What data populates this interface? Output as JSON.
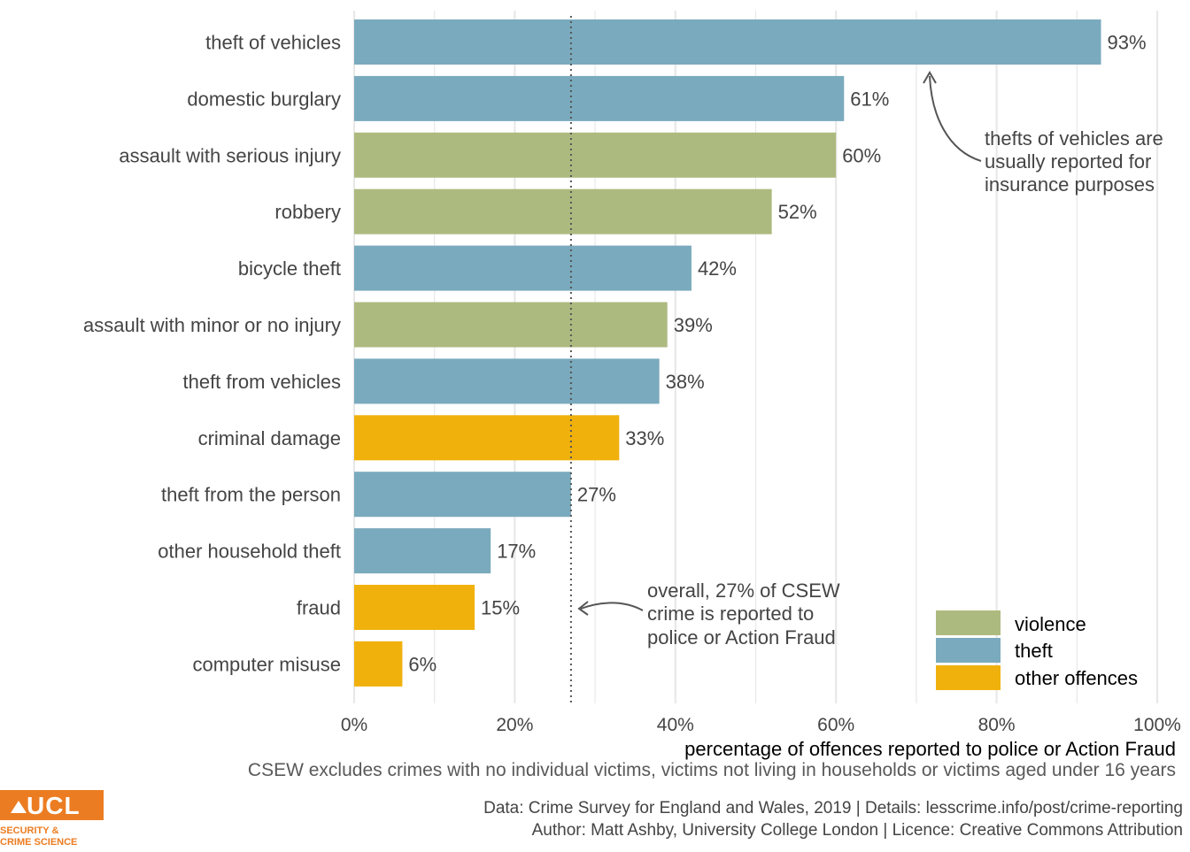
{
  "chart_data": {
    "type": "bar",
    "orientation": "horizontal",
    "categories": [
      "theft of vehicles",
      "domestic burglary",
      "assault with serious injury",
      "robbery",
      "bicycle theft",
      "assault with minor or no injury",
      "theft from vehicles",
      "criminal damage",
      "theft from the person",
      "other household theft",
      "fraud",
      "computer misuse"
    ],
    "values": [
      93,
      61,
      60,
      52,
      42,
      39,
      38,
      33,
      27,
      17,
      15,
      6
    ],
    "value_labels": [
      "93%",
      "61%",
      "60%",
      "52%",
      "42%",
      "39%",
      "38%",
      "33%",
      "27%",
      "17%",
      "15%",
      "6%"
    ],
    "groups": [
      "theft",
      "theft",
      "violence",
      "violence",
      "theft",
      "violence",
      "theft",
      "other offences",
      "theft",
      "theft",
      "other offences",
      "other offences"
    ],
    "xlabel": "percentage of offences reported to police or Action Fraud",
    "ylabel": "",
    "xlim": [
      0,
      100
    ],
    "x_ticks": [
      0,
      20,
      40,
      60,
      80,
      100
    ],
    "x_tick_labels": [
      "0%",
      "20%",
      "40%",
      "60%",
      "80%",
      "100%"
    ],
    "grid": true,
    "reference_line": {
      "value": 27,
      "style": "dotted"
    },
    "legend": {
      "position": "bottom-right",
      "entries": [
        {
          "label": "violence",
          "color": "#adba7f"
        },
        {
          "label": "theft",
          "color": "#7aaabd"
        },
        {
          "label": "other offences",
          "color": "#f0b10d"
        }
      ]
    },
    "annotations": [
      {
        "lines": [
          "thefts of vehicles are",
          "usually reported for",
          "insurance purposes"
        ]
      },
      {
        "lines": [
          "overall, 27% of CSEW",
          "crime is reported to",
          "police or Action Fraud"
        ]
      }
    ]
  },
  "caption": "CSEW excludes crimes with no individual victims, victims not living in households or victims aged under 16 years",
  "footer": {
    "line1": "Data: Crime Survey for England and Wales, 2019 |  Details: lesscrime.info/post/crime-reporting",
    "line2": "Author: Matt Ashby, University College London |  Licence: Creative Commons Attribution"
  },
  "logo": {
    "wordmark": "UCL",
    "subtitle_line1": "SECURITY &",
    "subtitle_line2": "CRIME SCIENCE"
  },
  "colors": {
    "violence": "#adba7f",
    "theft": "#7aaabd",
    "other": "#f0b10d",
    "grid": "#e8e8e8",
    "ucl_orange": "#ec7c21"
  }
}
